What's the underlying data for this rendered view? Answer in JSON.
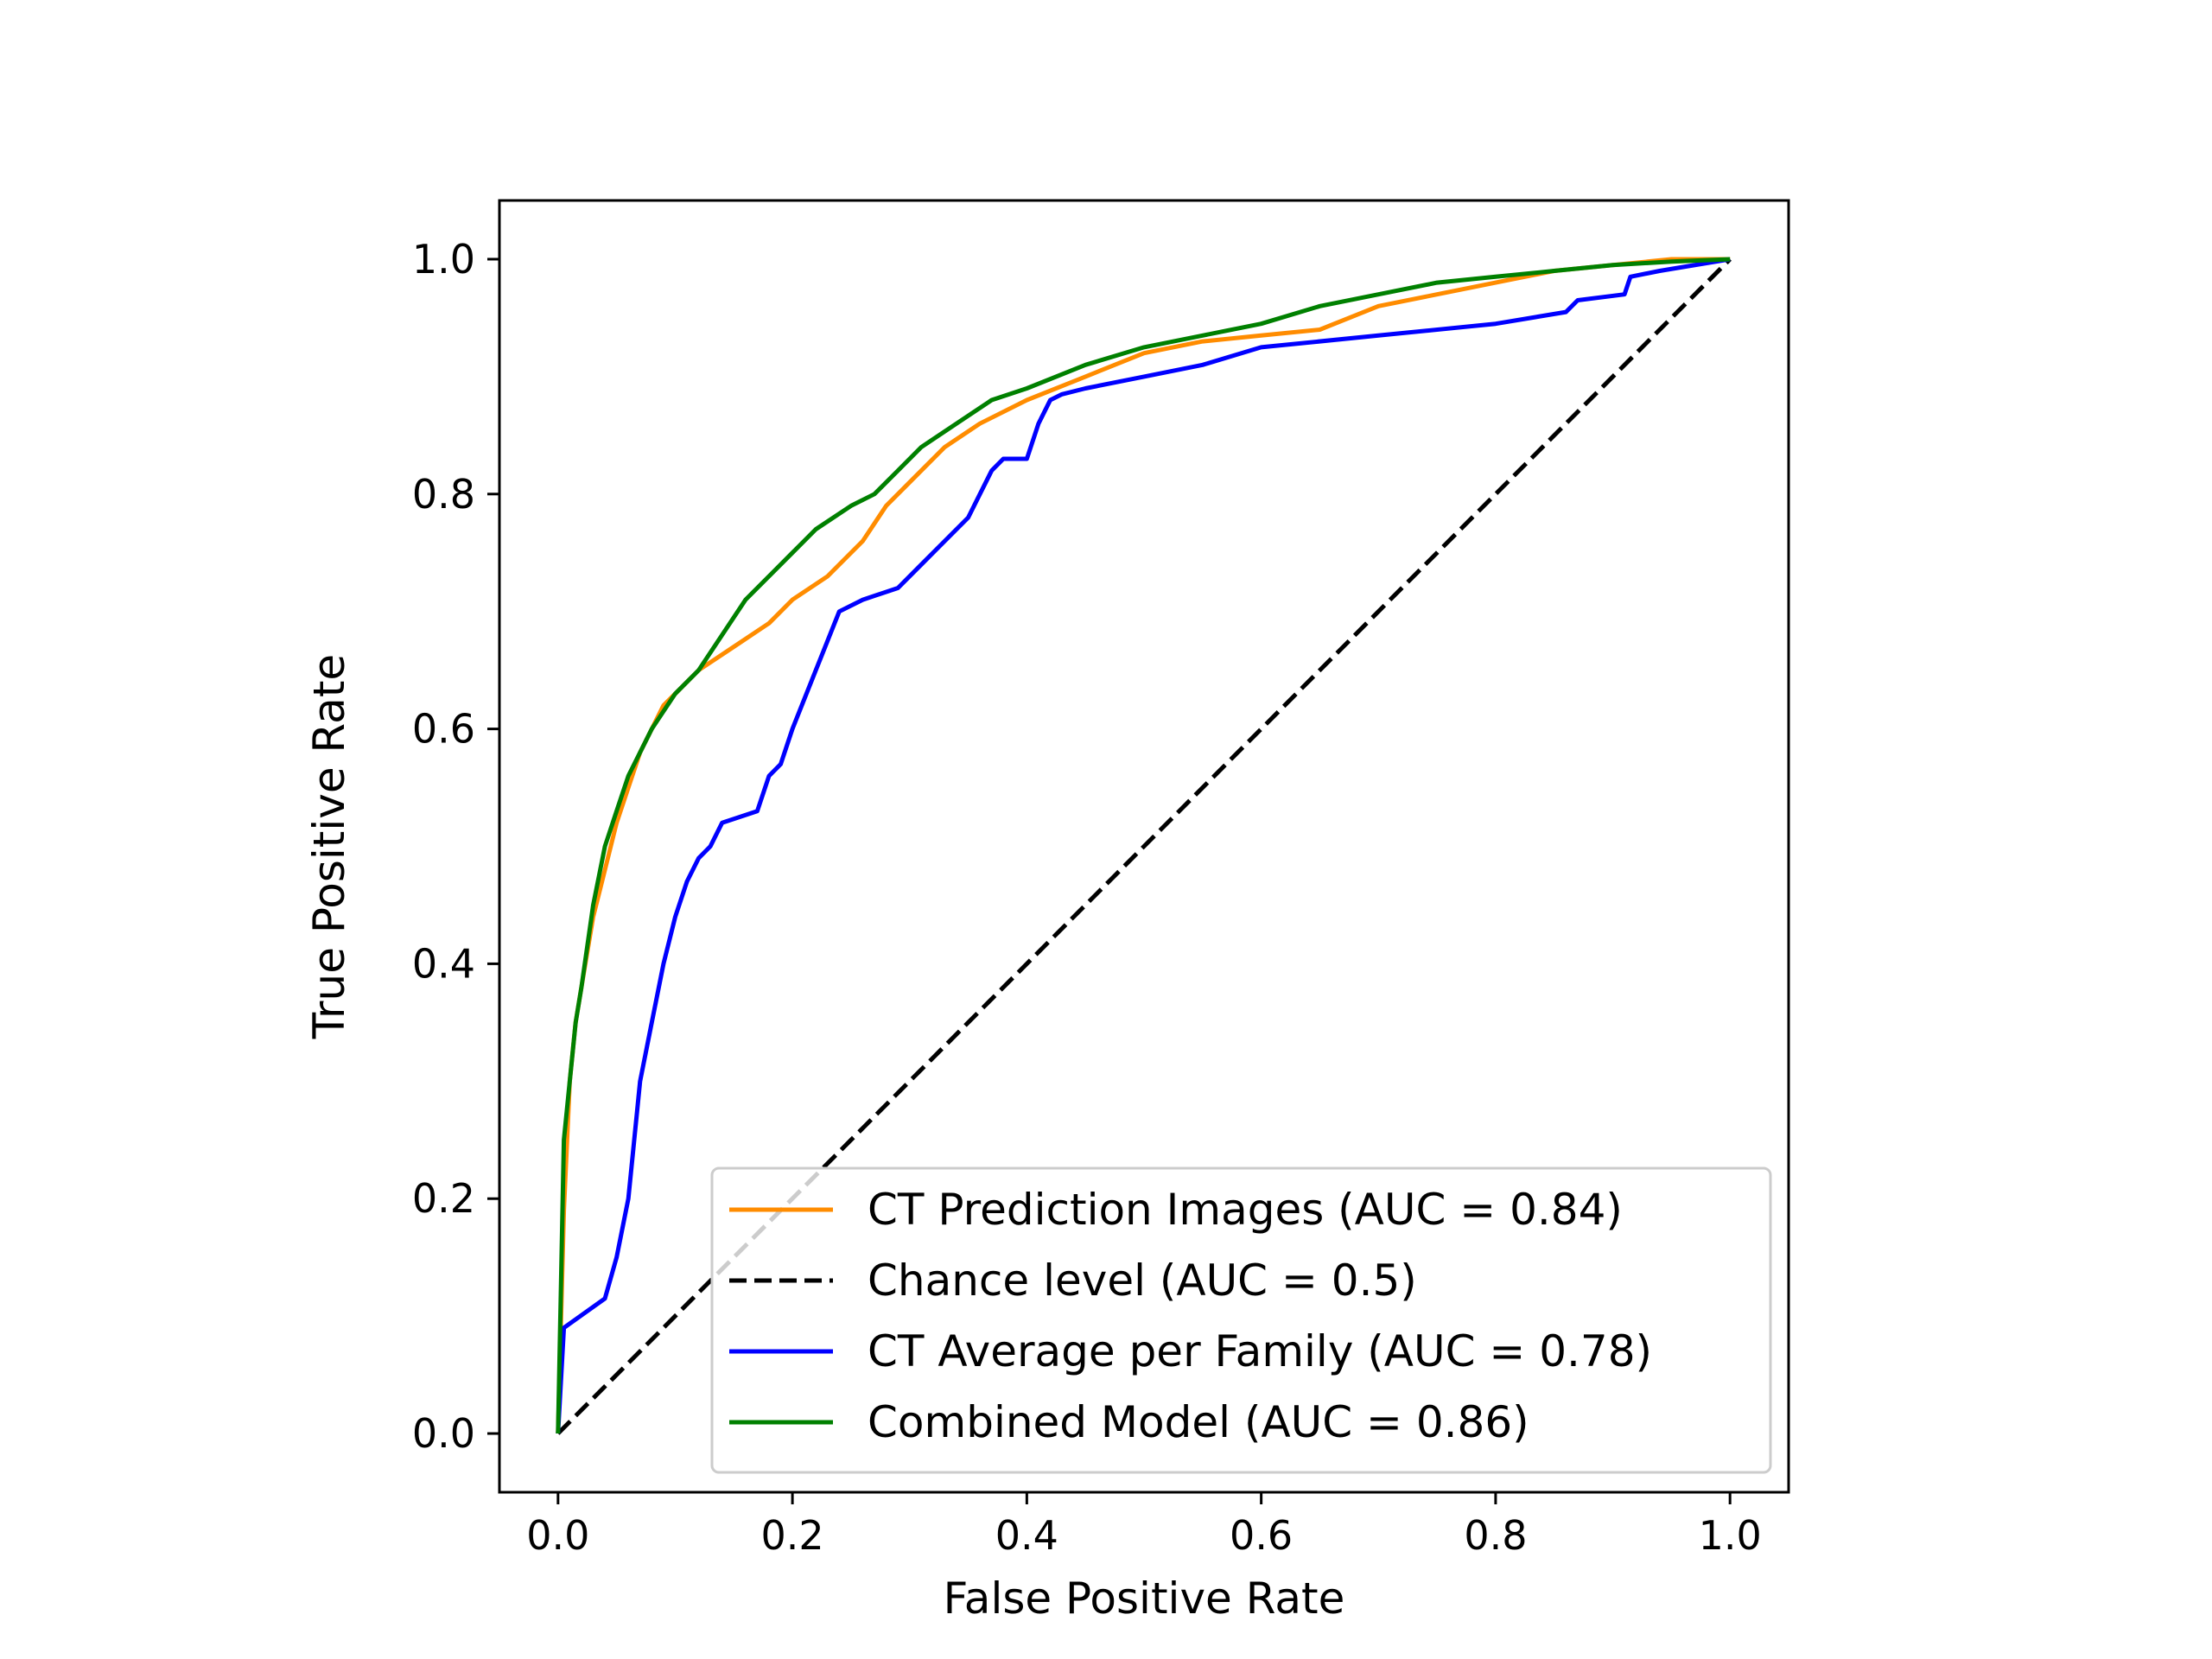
{
  "chart_data": {
    "type": "line",
    "title": "",
    "xlabel": "False Positive Rate",
    "ylabel": "True Positive Rate",
    "xlim": [
      -0.05,
      1.05
    ],
    "ylim": [
      -0.05,
      1.05
    ],
    "xticks": [
      "0.0",
      "0.2",
      "0.4",
      "0.6",
      "0.8",
      "1.0"
    ],
    "yticks": [
      "0.0",
      "0.2",
      "0.4",
      "0.6",
      "0.8",
      "1.0"
    ],
    "grid": false,
    "legend_position": "lower-right",
    "series": [
      {
        "name": "CT Prediction Images (AUC = 0.84)",
        "color": "#ff8c00",
        "style": "solid",
        "x": [
          0,
          0.005,
          0.01,
          0.015,
          0.02,
          0.03,
          0.04,
          0.05,
          0.06,
          0.07,
          0.08,
          0.09,
          0.1,
          0.12,
          0.15,
          0.18,
          0.2,
          0.23,
          0.26,
          0.28,
          0.3,
          0.33,
          0.36,
          0.4,
          0.45,
          0.5,
          0.55,
          0.6,
          0.65,
          0.7,
          0.75,
          0.8,
          0.85,
          0.9,
          0.95,
          1.0
        ],
        "y": [
          0,
          0.19,
          0.3,
          0.35,
          0.38,
          0.44,
          0.48,
          0.52,
          0.55,
          0.58,
          0.6,
          0.62,
          0.63,
          0.65,
          0.67,
          0.69,
          0.71,
          0.73,
          0.76,
          0.79,
          0.81,
          0.84,
          0.86,
          0.88,
          0.9,
          0.92,
          0.93,
          0.935,
          0.94,
          0.96,
          0.97,
          0.98,
          0.99,
          0.995,
          1.0,
          1.0
        ]
      },
      {
        "name": "Chance level (AUC = 0.5)",
        "color": "#000000",
        "style": "dashed",
        "x": [
          0,
          1
        ],
        "y": [
          0,
          1
        ]
      },
      {
        "name": "CT Average per Family (AUC = 0.78)",
        "color": "#0000ff",
        "style": "solid",
        "x": [
          0,
          0.005,
          0.04,
          0.05,
          0.06,
          0.065,
          0.07,
          0.08,
          0.09,
          0.1,
          0.11,
          0.12,
          0.13,
          0.14,
          0.17,
          0.18,
          0.19,
          0.2,
          0.22,
          0.24,
          0.26,
          0.29,
          0.31,
          0.33,
          0.35,
          0.36,
          0.37,
          0.38,
          0.4,
          0.41,
          0.42,
          0.43,
          0.45,
          0.5,
          0.55,
          0.6,
          0.7,
          0.8,
          0.86,
          0.87,
          0.91,
          0.915,
          0.94,
          1.0
        ],
        "y": [
          0,
          0.09,
          0.115,
          0.15,
          0.2,
          0.25,
          0.3,
          0.35,
          0.4,
          0.44,
          0.47,
          0.49,
          0.5,
          0.52,
          0.53,
          0.56,
          0.57,
          0.6,
          0.65,
          0.7,
          0.71,
          0.72,
          0.74,
          0.76,
          0.78,
          0.8,
          0.82,
          0.83,
          0.83,
          0.86,
          0.88,
          0.885,
          0.89,
          0.9,
          0.91,
          0.925,
          0.935,
          0.945,
          0.955,
          0.965,
          0.97,
          0.985,
          0.99,
          1.0
        ]
      },
      {
        "name": "Combined Model (AUC = 0.86)",
        "color": "#008000",
        "style": "solid",
        "x": [
          0,
          0.005,
          0.01,
          0.015,
          0.02,
          0.03,
          0.04,
          0.05,
          0.06,
          0.07,
          0.08,
          0.1,
          0.12,
          0.14,
          0.16,
          0.18,
          0.2,
          0.22,
          0.25,
          0.27,
          0.29,
          0.31,
          0.34,
          0.37,
          0.4,
          0.45,
          0.5,
          0.55,
          0.6,
          0.65,
          0.7,
          0.75,
          0.8,
          0.85,
          0.9,
          0.95,
          1.0
        ],
        "y": [
          0,
          0.25,
          0.3,
          0.35,
          0.38,
          0.45,
          0.5,
          0.53,
          0.56,
          0.58,
          0.6,
          0.63,
          0.65,
          0.68,
          0.71,
          0.73,
          0.75,
          0.77,
          0.79,
          0.8,
          0.82,
          0.84,
          0.86,
          0.88,
          0.89,
          0.91,
          0.925,
          0.935,
          0.945,
          0.96,
          0.97,
          0.98,
          0.985,
          0.99,
          0.995,
          0.998,
          1.0
        ]
      }
    ]
  }
}
